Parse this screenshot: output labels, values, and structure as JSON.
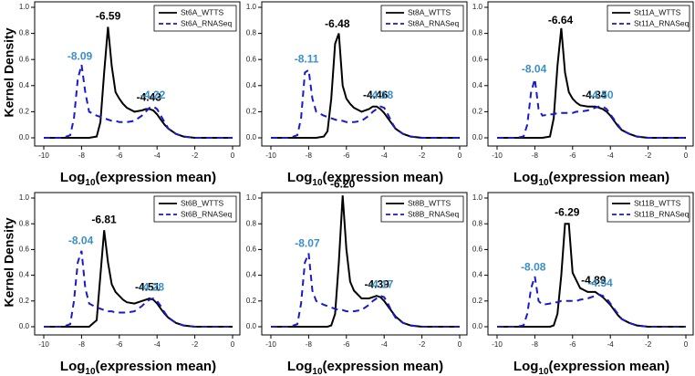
{
  "chart_data": [
    {
      "type": "line",
      "y_label": "Kernel Density",
      "x_label": [
        "Log",
        "10",
        "(expression mean)"
      ],
      "x": [
        -10,
        -9,
        -8.6,
        -8.4,
        -8.2,
        -8.0,
        -7.8,
        -7.6,
        -7.2,
        -7.0,
        -6.8,
        -6.6,
        -6.4,
        -6.2,
        -6.0,
        -5.8,
        -5.6,
        -5.2,
        -4.8,
        -4.6,
        -4.4,
        -4.2,
        -4.0,
        -3.8,
        -3.6,
        -3.4,
        -3.0,
        -2.6,
        -2,
        0
      ],
      "xlim": [
        -10,
        0
      ],
      "xticks": [
        -10,
        -8,
        -6,
        -4,
        -2,
        0
      ],
      "ylim": [
        0,
        1
      ],
      "yticks": [
        {
          "value": 0,
          "label": "0.0"
        },
        {
          "value": 0.2,
          "label": "0.2"
        },
        {
          "value": 0.4,
          "label": "0.4"
        },
        {
          "value": 0.6,
          "label": "0.6"
        },
        {
          "value": 0.8,
          "label": "0.8"
        },
        {
          "value": 1,
          "label": "1.0"
        }
      ],
      "legend": "top-right",
      "series": [
        {
          "name": "St6A_WTTS",
          "color": "#000000",
          "dash": false,
          "label_color": "#000000",
          "peaks": [
            -6.59,
            -4.43
          ],
          "peak_labels": [
            "-6.59",
            "-4.43"
          ],
          "values": [
            0,
            0,
            0,
            0,
            0,
            0,
            0,
            0,
            0.01,
            0.12,
            0.5,
            0.85,
            0.55,
            0.35,
            0.3,
            0.26,
            0.23,
            0.2,
            0.21,
            0.22,
            0.22,
            0.21,
            0.18,
            0.14,
            0.1,
            0.07,
            0.03,
            0.01,
            0,
            0
          ]
        },
        {
          "name": "St6A_RNASeq",
          "color": "#1a1acd",
          "dash": true,
          "label_color": "#3a8fc8",
          "peaks": [
            -8.09,
            -4.22
          ],
          "peak_labels": [
            "-8.09",
            "-4.22"
          ],
          "values": [
            0,
            0,
            0.02,
            0.15,
            0.45,
            0.56,
            0.35,
            0.2,
            0.17,
            0.16,
            0.15,
            0.14,
            0.13,
            0.13,
            0.12,
            0.12,
            0.12,
            0.13,
            0.17,
            0.2,
            0.23,
            0.24,
            0.22,
            0.17,
            0.12,
            0.07,
            0.03,
            0.01,
            0,
            0
          ]
        }
      ]
    },
    {
      "type": "line",
      "x_label": [
        "Log",
        "10",
        "(expression mean)"
      ],
      "x": [
        -10,
        -9,
        -8.6,
        -8.4,
        -8.2,
        -8.0,
        -7.8,
        -7.6,
        -7.2,
        -7.0,
        -6.8,
        -6.6,
        -6.4,
        -6.2,
        -6.0,
        -5.8,
        -5.6,
        -5.2,
        -4.8,
        -4.6,
        -4.4,
        -4.2,
        -4.0,
        -3.8,
        -3.6,
        -3.4,
        -3.0,
        -2.6,
        -2,
        0
      ],
      "xlim": [
        -10,
        0
      ],
      "xticks": [
        -10,
        -8,
        -6,
        -4,
        -2,
        0
      ],
      "ylim": [
        0,
        1
      ],
      "yticks": [
        {
          "value": 0,
          "label": "0.0"
        },
        {
          "value": 0.2,
          "label": "0.2"
        },
        {
          "value": 0.4,
          "label": "0.4"
        },
        {
          "value": 0.6,
          "label": "0.6"
        },
        {
          "value": 0.8,
          "label": "0.8"
        },
        {
          "value": 1,
          "label": "1.0"
        }
      ],
      "legend": "top-right",
      "series": [
        {
          "name": "St8A_WTTS",
          "color": "#000000",
          "dash": false,
          "label_color": "#000000",
          "peaks": [
            -6.48,
            -4.46
          ],
          "peak_labels": [
            "-6.48",
            "-4.46"
          ],
          "values": [
            0,
            0,
            0,
            0,
            0,
            0,
            0,
            0,
            0.01,
            0.05,
            0.3,
            0.72,
            0.8,
            0.4,
            0.3,
            0.26,
            0.23,
            0.2,
            0.22,
            0.24,
            0.24,
            0.22,
            0.19,
            0.15,
            0.11,
            0.07,
            0.03,
            0.01,
            0,
            0
          ]
        },
        {
          "name": "St8A_RNASeq",
          "color": "#1a1acd",
          "dash": true,
          "label_color": "#3a8fc8",
          "peaks": [
            -8.11,
            -4.18
          ],
          "peak_labels": [
            "-8.11",
            "-4.18"
          ],
          "values": [
            0,
            0,
            0.02,
            0.15,
            0.5,
            0.52,
            0.3,
            0.2,
            0.17,
            0.16,
            0.15,
            0.14,
            0.13,
            0.13,
            0.12,
            0.12,
            0.12,
            0.13,
            0.17,
            0.2,
            0.22,
            0.24,
            0.23,
            0.18,
            0.12,
            0.07,
            0.03,
            0.01,
            0,
            0
          ]
        }
      ]
    },
    {
      "type": "line",
      "x_label": [
        "Log",
        "10",
        "(expression mean)"
      ],
      "x": [
        -10,
        -9,
        -8.6,
        -8.4,
        -8.2,
        -8.0,
        -7.8,
        -7.6,
        -7.2,
        -7.0,
        -6.8,
        -6.6,
        -6.4,
        -6.2,
        -6.0,
        -5.8,
        -5.6,
        -5.2,
        -4.8,
        -4.6,
        -4.4,
        -4.2,
        -4.0,
        -3.8,
        -3.6,
        -3.4,
        -3.0,
        -2.6,
        -2,
        0
      ],
      "xlim": [
        -10,
        0
      ],
      "xticks": [
        -10,
        -8,
        -6,
        -4,
        -2,
        0
      ],
      "ylim": [
        0,
        1
      ],
      "yticks": [
        {
          "value": 0,
          "label": "0.0"
        },
        {
          "value": 0.2,
          "label": "0.2"
        },
        {
          "value": 0.4,
          "label": "0.4"
        },
        {
          "value": 0.6,
          "label": "0.6"
        },
        {
          "value": 0.8,
          "label": "0.8"
        },
        {
          "value": 1,
          "label": "1.0"
        }
      ],
      "legend": "top-right",
      "series": [
        {
          "name": "St11A_WTTS",
          "color": "#000000",
          "dash": false,
          "label_color": "#000000",
          "peaks": [
            -6.64,
            -4.84
          ],
          "peak_labels": [
            "-6.64",
            "-4.84"
          ],
          "values": [
            0,
            0,
            0,
            0,
            0,
            0,
            0,
            0,
            0.01,
            0.15,
            0.55,
            0.84,
            0.5,
            0.35,
            0.3,
            0.27,
            0.25,
            0.24,
            0.24,
            0.23,
            0.22,
            0.2,
            0.17,
            0.13,
            0.09,
            0.06,
            0.03,
            0.01,
            0,
            0
          ]
        },
        {
          "name": "St11A_RNASeq",
          "color": "#1a1acd",
          "dash": true,
          "label_color": "#3a8fc8",
          "peaks": [
            -8.04,
            -4.5
          ],
          "peak_labels": [
            "-8.04",
            "-4.50"
          ],
          "values": [
            0,
            0,
            0.01,
            0.1,
            0.35,
            0.45,
            0.22,
            0.17,
            0.18,
            0.18,
            0.19,
            0.19,
            0.19,
            0.19,
            0.19,
            0.2,
            0.2,
            0.21,
            0.23,
            0.24,
            0.24,
            0.22,
            0.18,
            0.14,
            0.1,
            0.06,
            0.03,
            0.01,
            0,
            0
          ]
        }
      ]
    },
    {
      "type": "line",
      "y_label": "Kernel Density",
      "x_label": [
        "Log",
        "10",
        "(expression mean)"
      ],
      "x": [
        -10,
        -9,
        -8.6,
        -8.4,
        -8.2,
        -8.0,
        -7.8,
        -7.6,
        -7.2,
        -7.0,
        -6.8,
        -6.6,
        -6.4,
        -6.2,
        -6.0,
        -5.8,
        -5.6,
        -5.2,
        -4.8,
        -4.6,
        -4.4,
        -4.2,
        -4.0,
        -3.8,
        -3.6,
        -3.4,
        -3.0,
        -2.6,
        -2,
        0
      ],
      "xlim": [
        -10,
        0
      ],
      "xticks": [
        -10,
        -8,
        -6,
        -4,
        -2,
        0
      ],
      "ylim": [
        0,
        1
      ],
      "yticks": [
        {
          "value": 0,
          "label": "0.0"
        },
        {
          "value": 0.2,
          "label": "0.2"
        },
        {
          "value": 0.4,
          "label": "0.4"
        },
        {
          "value": 0.6,
          "label": "0.6"
        },
        {
          "value": 0.8,
          "label": "0.8"
        },
        {
          "value": 1,
          "label": "1.0"
        }
      ],
      "legend": "top-right",
      "series": [
        {
          "name": "St6B_WTTS",
          "color": "#000000",
          "dash": false,
          "label_color": "#000000",
          "peaks": [
            -6.81,
            -4.51
          ],
          "peak_labels": [
            "-6.81",
            "-4.51"
          ],
          "values": [
            0,
            0,
            0,
            0,
            0,
            0,
            0,
            0,
            0.05,
            0.4,
            0.75,
            0.5,
            0.33,
            0.27,
            0.24,
            0.21,
            0.19,
            0.18,
            0.2,
            0.21,
            0.22,
            0.21,
            0.18,
            0.14,
            0.1,
            0.07,
            0.03,
            0.01,
            0,
            0
          ]
        },
        {
          "name": "St6B_RNASeq",
          "color": "#1a1acd",
          "dash": true,
          "label_color": "#3a8fc8",
          "peaks": [
            -8.04,
            -4.28
          ],
          "peak_labels": [
            "-8.04",
            "-4.28"
          ],
          "values": [
            0,
            0,
            0.02,
            0.2,
            0.5,
            0.59,
            0.3,
            0.18,
            0.15,
            0.14,
            0.13,
            0.12,
            0.12,
            0.11,
            0.11,
            0.11,
            0.11,
            0.12,
            0.16,
            0.19,
            0.21,
            0.22,
            0.2,
            0.16,
            0.11,
            0.07,
            0.03,
            0.01,
            0,
            0
          ]
        }
      ]
    },
    {
      "type": "line",
      "x_label": [
        "Log",
        "10",
        "(expression mean)"
      ],
      "x": [
        -10,
        -9,
        -8.6,
        -8.4,
        -8.2,
        -8.0,
        -7.8,
        -7.6,
        -7.2,
        -7.0,
        -6.8,
        -6.6,
        -6.4,
        -6.2,
        -6.0,
        -5.8,
        -5.6,
        -5.2,
        -4.8,
        -4.6,
        -4.4,
        -4.2,
        -4.0,
        -3.8,
        -3.6,
        -3.4,
        -3.0,
        -2.6,
        -2,
        0
      ],
      "xlim": [
        -10,
        0
      ],
      "xticks": [
        -10,
        -8,
        -6,
        -4,
        -2,
        0
      ],
      "ylim": [
        0,
        1
      ],
      "yticks": [
        {
          "value": 0,
          "label": "0.0"
        },
        {
          "value": 0.2,
          "label": "0.2"
        },
        {
          "value": 0.4,
          "label": "0.4"
        },
        {
          "value": 0.6,
          "label": "0.6"
        },
        {
          "value": 0.8,
          "label": "0.8"
        },
        {
          "value": 1,
          "label": "1.0"
        }
      ],
      "legend": "top-right",
      "series": [
        {
          "name": "St8B_WTTS",
          "color": "#000000",
          "dash": false,
          "label_color": "#000000",
          "peaks": [
            -6.2,
            -4.39
          ],
          "peak_labels": [
            "-6.20",
            "-4.39"
          ],
          "values": [
            0,
            0,
            0,
            0,
            0,
            0,
            0,
            0,
            0,
            0,
            0.01,
            0.1,
            0.5,
            1.02,
            0.6,
            0.35,
            0.28,
            0.22,
            0.22,
            0.23,
            0.24,
            0.23,
            0.2,
            0.16,
            0.12,
            0.08,
            0.03,
            0.01,
            0,
            0
          ]
        },
        {
          "name": "St8B_RNASeq",
          "color": "#1a1acd",
          "dash": true,
          "label_color": "#3a8fc8",
          "peaks": [
            -8.07,
            -4.17
          ],
          "peak_labels": [
            "-8.07",
            "-4.17"
          ],
          "values": [
            0,
            0,
            0.02,
            0.18,
            0.5,
            0.57,
            0.28,
            0.2,
            0.17,
            0.16,
            0.15,
            0.14,
            0.13,
            0.13,
            0.12,
            0.12,
            0.12,
            0.13,
            0.17,
            0.2,
            0.22,
            0.24,
            0.23,
            0.18,
            0.12,
            0.07,
            0.03,
            0.01,
            0,
            0
          ]
        }
      ]
    },
    {
      "type": "line",
      "x_label": [
        "Log",
        "10",
        "(expression mean)"
      ],
      "x": [
        -10,
        -9,
        -8.6,
        -8.4,
        -8.2,
        -8.0,
        -7.8,
        -7.6,
        -7.2,
        -7.0,
        -6.8,
        -6.6,
        -6.4,
        -6.2,
        -6.0,
        -5.8,
        -5.6,
        -5.2,
        -4.8,
        -4.6,
        -4.4,
        -4.2,
        -4.0,
        -3.8,
        -3.6,
        -3.4,
        -3.0,
        -2.6,
        -2,
        0
      ],
      "xlim": [
        -10,
        0
      ],
      "xticks": [
        -10,
        -8,
        -6,
        -4,
        -2,
        0
      ],
      "ylim": [
        0,
        1
      ],
      "yticks": [
        {
          "value": 0,
          "label": "0.0"
        },
        {
          "value": 0.2,
          "label": "0.2"
        },
        {
          "value": 0.4,
          "label": "0.4"
        },
        {
          "value": 0.6,
          "label": "0.6"
        },
        {
          "value": 0.8,
          "label": "0.8"
        },
        {
          "value": 1,
          "label": "1.0"
        }
      ],
      "legend": "top-right",
      "series": [
        {
          "name": "St11B_WTTS",
          "color": "#000000",
          "dash": false,
          "label_color": "#000000",
          "peaks": [
            -6.29,
            -4.89
          ],
          "peak_labels": [
            "-6.29",
            "-4.89"
          ],
          "values": [
            0,
            0,
            0,
            0,
            0,
            0,
            0,
            0,
            0,
            0.01,
            0.1,
            0.4,
            0.8,
            0.8,
            0.42,
            0.36,
            0.3,
            0.27,
            0.27,
            0.25,
            0.23,
            0.2,
            0.17,
            0.13,
            0.09,
            0.06,
            0.03,
            0.01,
            0,
            0
          ]
        },
        {
          "name": "St11B_RNASeq",
          "color": "#1a1acd",
          "dash": true,
          "label_color": "#3a8fc8",
          "peaks": [
            -8.08,
            -4.54
          ],
          "peak_labels": [
            "-8.08",
            "-4.54"
          ],
          "values": [
            0,
            0,
            0.01,
            0.1,
            0.3,
            0.39,
            0.2,
            0.17,
            0.18,
            0.19,
            0.19,
            0.2,
            0.2,
            0.2,
            0.2,
            0.2,
            0.21,
            0.22,
            0.24,
            0.25,
            0.24,
            0.22,
            0.18,
            0.14,
            0.1,
            0.06,
            0.03,
            0.01,
            0,
            0
          ]
        }
      ]
    }
  ]
}
